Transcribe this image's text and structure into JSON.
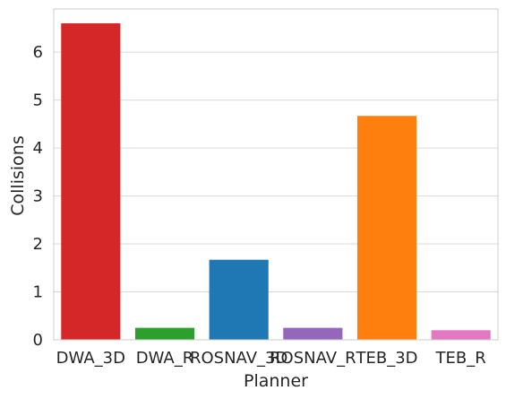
{
  "chart_data": {
    "type": "bar",
    "categories": [
      "DWA_3D",
      "DWA_R",
      "ROSNAV_3D",
      "ROSNAV_R",
      "TEB_3D",
      "TEB_R"
    ],
    "values": [
      6.6,
      0.25,
      1.67,
      0.25,
      4.67,
      0.2
    ],
    "colors": [
      "#d62728",
      "#2ca02c",
      "#1f77b4",
      "#9467bd",
      "#ff7f0e",
      "#e377c2"
    ],
    "xlabel": "Planner",
    "ylabel": "Collisions",
    "ylim": [
      0,
      6.9
    ],
    "yticks": [
      "0",
      "1",
      "2",
      "3",
      "4",
      "5",
      "6"
    ],
    "grid": true,
    "legend": "none"
  }
}
